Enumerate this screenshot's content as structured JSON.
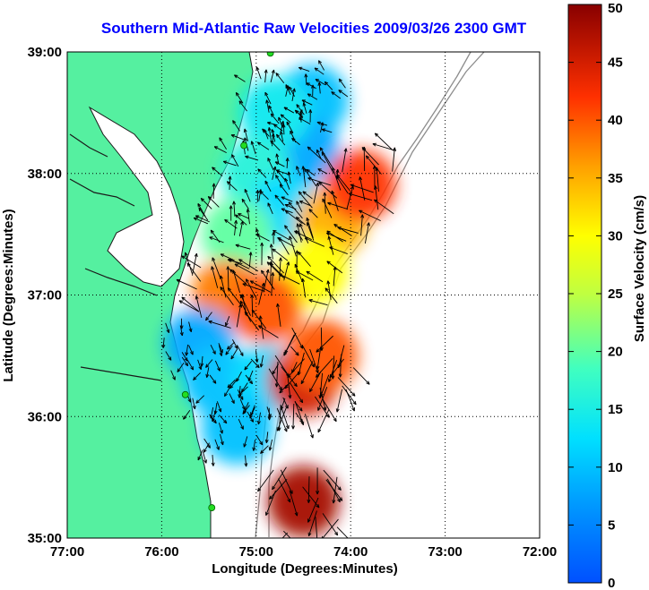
{
  "title": "Southern Mid-Atlantic Raw Velocities 2009/03/26 2300 GMT",
  "xlabel": "Longitude (Degrees:Minutes)",
  "ylabel": "Latitude (Degrees:Minutes)",
  "colorbar_label": "Surface Velocity (cm/s)",
  "colors": {
    "land": "#55f0a0",
    "coast_line": "#1a1a1a",
    "bathy": "#8c8c8c",
    "title": "#0000ff",
    "station": "#22dd22"
  },
  "chart_data": {
    "type": "heatmap",
    "x_ticks": [
      {
        "value": -77,
        "label": "77:00"
      },
      {
        "value": -76,
        "label": "76:00"
      },
      {
        "value": -75,
        "label": "75:00"
      },
      {
        "value": -74,
        "label": "74:00"
      },
      {
        "value": -73,
        "label": "73:00"
      },
      {
        "value": -72,
        "label": "72:00"
      }
    ],
    "y_ticks": [
      {
        "value": 35,
        "label": "35:00"
      },
      {
        "value": 36,
        "label": "36:00"
      },
      {
        "value": 37,
        "label": "37:00"
      },
      {
        "value": 38,
        "label": "38:00"
      },
      {
        "value": 39,
        "label": "39:00"
      }
    ],
    "xlim": [
      -77,
      -72
    ],
    "ylim": [
      35,
      39
    ],
    "grid": true,
    "colorbar": {
      "range": [
        0,
        50
      ],
      "ticks": [
        0,
        5,
        10,
        15,
        20,
        25,
        30,
        35,
        40,
        45,
        50
      ],
      "colormap": "jet"
    },
    "velocity_regions": [
      {
        "lon": -74.4,
        "lat": 38.6,
        "speed": 10
      },
      {
        "lon": -74.5,
        "lat": 38.2,
        "speed": 8
      },
      {
        "lon": -74.8,
        "lat": 38.5,
        "speed": 14
      },
      {
        "lon": -75.0,
        "lat": 38.0,
        "speed": 16
      },
      {
        "lon": -74.7,
        "lat": 37.7,
        "speed": 12
      },
      {
        "lon": -75.2,
        "lat": 37.5,
        "speed": 20
      },
      {
        "lon": -74.2,
        "lat": 37.6,
        "speed": 35
      },
      {
        "lon": -73.9,
        "lat": 37.9,
        "speed": 42
      },
      {
        "lon": -74.4,
        "lat": 37.2,
        "speed": 30
      },
      {
        "lon": -75.3,
        "lat": 37.0,
        "speed": 38
      },
      {
        "lon": -74.9,
        "lat": 36.9,
        "speed": 40
      },
      {
        "lon": -75.6,
        "lat": 36.6,
        "speed": 8
      },
      {
        "lon": -75.4,
        "lat": 36.3,
        "speed": 10
      },
      {
        "lon": -74.9,
        "lat": 36.3,
        "speed": 12
      },
      {
        "lon": -74.5,
        "lat": 36.3,
        "speed": 45
      },
      {
        "lon": -74.3,
        "lat": 36.5,
        "speed": 40
      },
      {
        "lon": -75.2,
        "lat": 35.9,
        "speed": 10
      },
      {
        "lon": -74.5,
        "lat": 35.3,
        "speed": 48
      }
    ],
    "stations": [
      {
        "lon": -74.85,
        "lat": 38.99
      },
      {
        "lon": -75.13,
        "lat": 38.23
      },
      {
        "lon": -75.75,
        "lat": 36.18
      },
      {
        "lon": -75.47,
        "lat": 35.25
      }
    ]
  }
}
